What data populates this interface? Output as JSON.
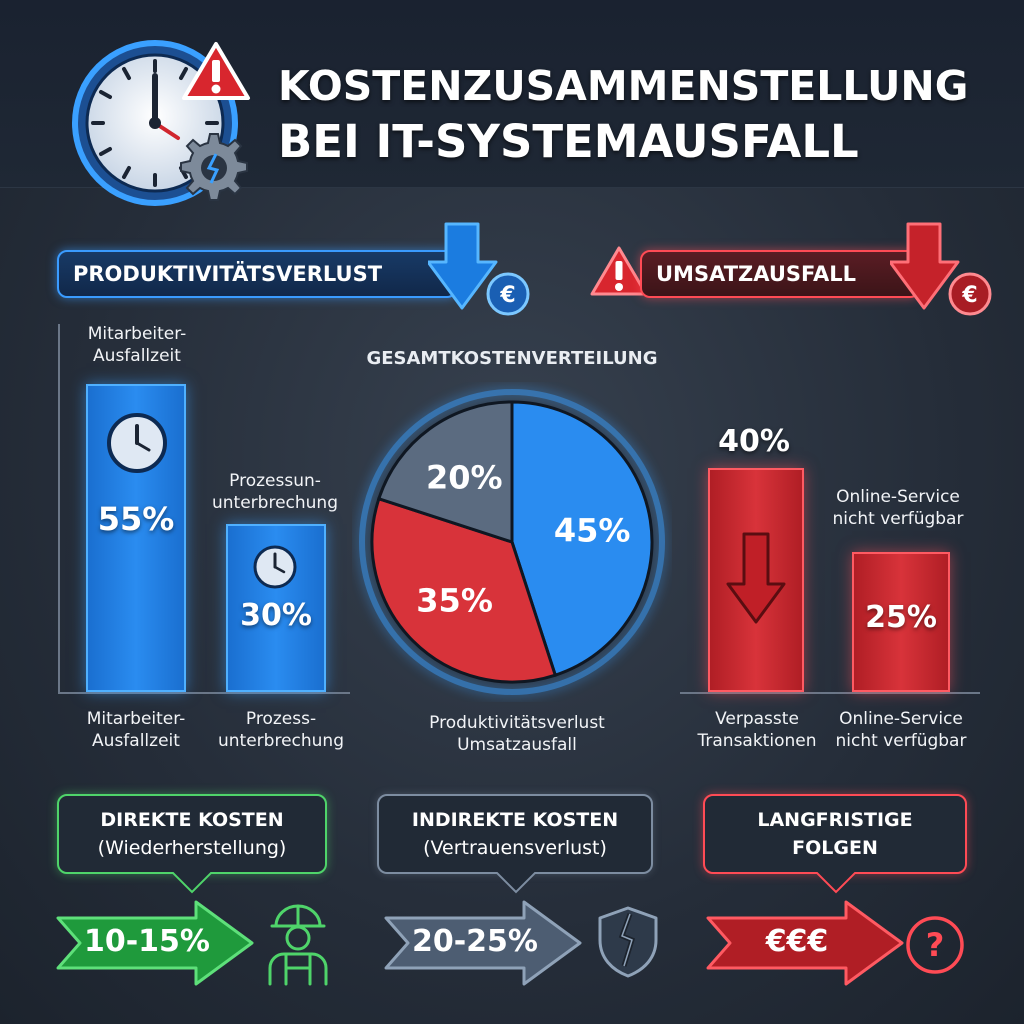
{
  "title": {
    "line1": "KOSTENZUSAMMENSTELLUNG",
    "line2": "BEI IT-SYSTEMAUSFALL"
  },
  "icons": {
    "header": [
      "clock-icon",
      "warning-icon",
      "broken-gear-icon"
    ],
    "productivity": "down-arrow-euro-icon",
    "revenue": [
      "warning-icon",
      "down-arrow-euro-icon"
    ],
    "direct": "worker-icon",
    "indirect": "broken-shield-icon",
    "longterm": "question-icon"
  },
  "colors": {
    "blue": "#2a8cf0",
    "red": "#d8333a",
    "gray": "#5b6b80",
    "green": "#4fd46a"
  },
  "productivity": {
    "heading": "PRODUKTIVITÄTSVERLUST",
    "bars": [
      {
        "label_top": [
          "Mitarbeiter-",
          "Ausfallzeit"
        ],
        "value": 55,
        "value_label": "55%",
        "label_bottom": [
          "Mitarbeiter-",
          "Ausfallzeit"
        ]
      },
      {
        "label_top": [
          "Prozessun-",
          "unterbrechung"
        ],
        "value": 30,
        "value_label": "30%",
        "label_bottom": [
          "Prozess-",
          "unterbrechung"
        ]
      }
    ]
  },
  "revenue": {
    "heading": "UMSATZAUSFALL",
    "bars": [
      {
        "label_top": "",
        "value": 40,
        "value_label": "40%",
        "label_bottom": [
          "Verpasste",
          "Transaktionen"
        ]
      },
      {
        "label_top": [
          "Online-Service",
          "nicht verfügbar"
        ],
        "value": 25,
        "value_label": "25%",
        "label_bottom": [
          "Online-Service",
          "nicht verfügbar"
        ]
      }
    ]
  },
  "pie": {
    "title": "GESAMTKOSTENVERTEILUNG",
    "legend": [
      "Produktivitätsverlust",
      "Umsatzausfall"
    ]
  },
  "chart_data": [
    {
      "type": "bar",
      "title": "PRODUKTIVITÄTSVERLUST",
      "categories": [
        "Mitarbeiter-Ausfallzeit",
        "Prozess-unterbrechung"
      ],
      "values": [
        55,
        30
      ]
    },
    {
      "type": "pie",
      "title": "GESAMTKOSTENVERTEILUNG",
      "slices": [
        {
          "label": "Produktivitätsverlust",
          "value": 45,
          "value_label": "45%",
          "color": "#2a8cf0"
        },
        {
          "label": "Umsatzausfall",
          "value": 35,
          "value_label": "35%",
          "color": "#d8333a"
        },
        {
          "label": "",
          "value": 20,
          "value_label": "20%",
          "color": "#5b6b80"
        }
      ]
    },
    {
      "type": "bar",
      "title": "UMSATZAUSFALL",
      "categories": [
        "Verpasste Transaktionen",
        "Online-Service nicht verfügbar"
      ],
      "values": [
        40,
        25
      ]
    }
  ],
  "summary": [
    {
      "line1": "DIREKTE KOSTEN",
      "line2": "(Wiederherstellung)",
      "value": "10-15%"
    },
    {
      "line1": "INDIREKTE KOSTEN",
      "line2": "(Vertrauensverlust)",
      "value": "20-25%"
    },
    {
      "line1": "LANGFRISTIGE",
      "line2": "FOLGEN",
      "value": "€€€"
    }
  ]
}
